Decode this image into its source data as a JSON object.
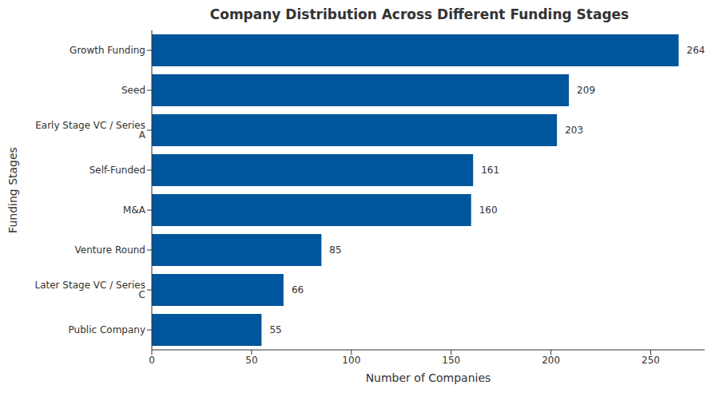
{
  "chart_data": {
    "type": "bar",
    "orientation": "horizontal",
    "title": "Company Distribution Across Different Funding Stages",
    "x_label": "Number of Companies",
    "y_label": "Funding Stages",
    "categories": [
      "Growth Funding",
      "Seed",
      "Early Stage VC / Series A",
      "Self-Funded",
      "M&A",
      "Venture Round",
      "Later Stage VC / Series C",
      "Public Company"
    ],
    "values": [
      264,
      209,
      203,
      161,
      160,
      85,
      66,
      55
    ],
    "color": "#00569c",
    "xlim": [
      0,
      277
    ],
    "xticks": [
      0,
      50,
      100,
      150,
      200,
      250
    ],
    "grid": false,
    "data_labels": true
  }
}
